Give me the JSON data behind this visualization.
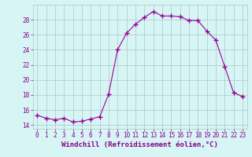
{
  "hours": [
    0,
    1,
    2,
    3,
    4,
    5,
    6,
    7,
    8,
    9,
    10,
    11,
    12,
    13,
    14,
    15,
    16,
    17,
    18,
    19,
    20,
    21,
    22,
    23
  ],
  "values": [
    15.3,
    14.9,
    14.7,
    14.9,
    14.4,
    14.5,
    14.8,
    15.1,
    18.1,
    24.0,
    26.2,
    27.4,
    28.3,
    29.1,
    28.5,
    28.5,
    28.4,
    27.9,
    27.9,
    26.5,
    25.3,
    21.8,
    18.3,
    17.8
  ],
  "line_color": "#990099",
  "marker": "+",
  "marker_size": 4,
  "marker_linewidth": 1.0,
  "bg_color": "#d8f5f5",
  "grid_color": "#aac8c8",
  "xlabel": "Windchill (Refroidissement éolien,°C)",
  "xlim": [
    -0.5,
    23.5
  ],
  "ylim": [
    13.5,
    30.0
  ],
  "yticks": [
    14,
    16,
    18,
    20,
    22,
    24,
    26,
    28
  ],
  "xticks": [
    0,
    1,
    2,
    3,
    4,
    5,
    6,
    7,
    8,
    9,
    10,
    11,
    12,
    13,
    14,
    15,
    16,
    17,
    18,
    19,
    20,
    21,
    22,
    23
  ],
  "xlabel_color": "#880088",
  "tick_color": "#880088",
  "label_fontsize": 6.5,
  "tick_fontsize": 5.5
}
